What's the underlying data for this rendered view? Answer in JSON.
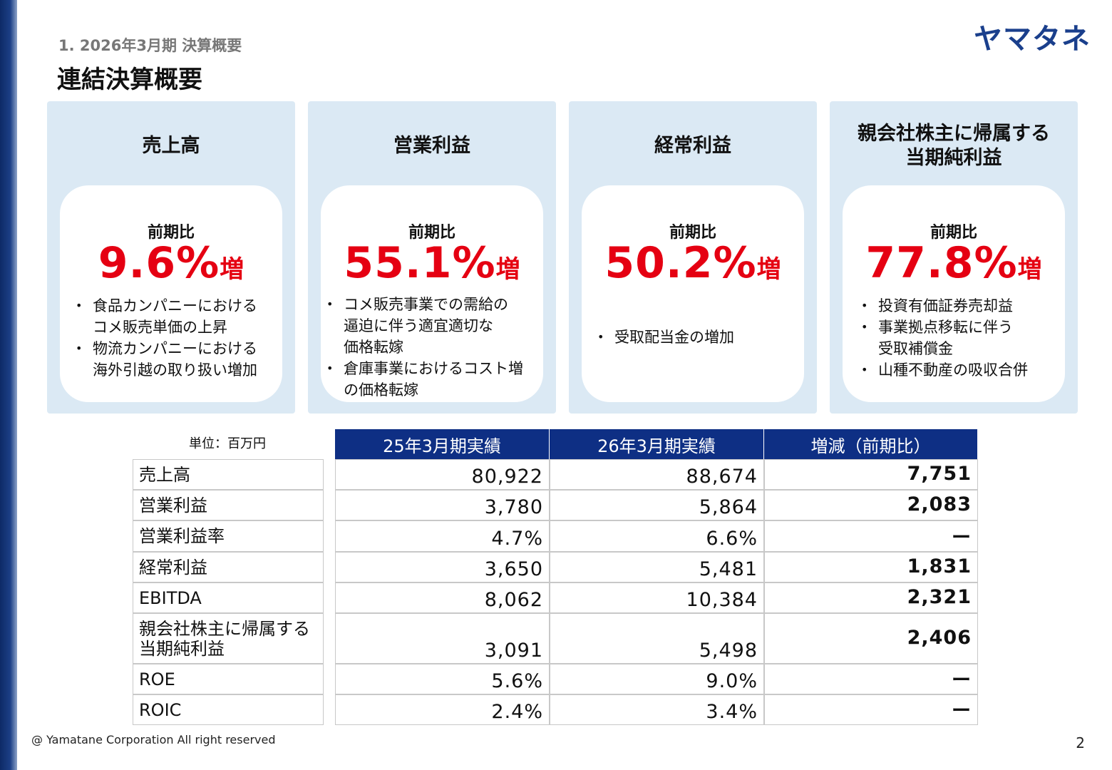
{
  "header": {
    "section_label": "1. 2026年3月期 決算概要",
    "title": "連結決算概要",
    "logo_text": "ヤマタネ"
  },
  "cards": [
    {
      "title": "売上高",
      "comparison_label": "前期比",
      "value": "9.6%",
      "suffix": "増",
      "bullets": [
        "食品カンパニーにおける\nコメ販売単価の上昇",
        "物流カンパニーにおける\n海外引越の取り扱い増加"
      ]
    },
    {
      "title": "営業利益",
      "comparison_label": "前期比",
      "value": "55.1%",
      "suffix": "増",
      "bullets": [
        "コメ販売事業での需給の\n逼迫に伴う適宜適切な\n価格転嫁",
        "倉庫事業におけるコスト増\nの価格転嫁"
      ]
    },
    {
      "title": "経常利益",
      "comparison_label": "前期比",
      "value": "50.2%",
      "suffix": "増",
      "bullets": [
        "受取配当金の増加"
      ]
    },
    {
      "title": "親会社株主に帰属する\n当期純利益",
      "comparison_label": "前期比",
      "value": "77.8%",
      "suffix": "増",
      "bullets": [
        "投資有価証券売却益",
        "事業拠点移転に伴う\n受取補償金",
        "山種不動産の吸収合併"
      ]
    }
  ],
  "table": {
    "unit_label": "単位：百万円",
    "headers": [
      "25年3月期実績",
      "26年3月期実績",
      "増減（前期比）"
    ],
    "rows": [
      {
        "label": "売上高",
        "fy25": "80,922",
        "fy26": "88,674",
        "change": "7,751"
      },
      {
        "label": "営業利益",
        "fy25": "3,780",
        "fy26": "5,864",
        "change": "2,083"
      },
      {
        "label": "営業利益率",
        "fy25": "4.7%",
        "fy26": "6.6%",
        "change": "ー"
      },
      {
        "label": "経常利益",
        "fy25": "3,650",
        "fy26": "5,481",
        "change": "1,831"
      },
      {
        "label": "EBITDA",
        "fy25": "8,062",
        "fy26": "10,384",
        "change": "2,321"
      },
      {
        "label": "親会社株主に帰属する\n当期純利益",
        "fy25": "3,091",
        "fy26": "5,498",
        "change": "2,406"
      },
      {
        "label": "ROE",
        "fy25": "5.6%",
        "fy26": "9.0%",
        "change": "ー"
      },
      {
        "label": "ROIC",
        "fy25": "2.4%",
        "fy26": "3.4%",
        "change": "ー"
      }
    ]
  },
  "footer": {
    "copyright": "@ Yamatane Corporation All right reserved",
    "page_number": "2"
  }
}
